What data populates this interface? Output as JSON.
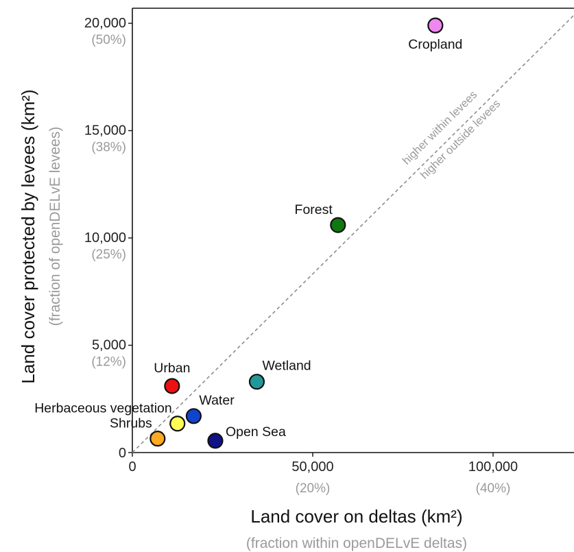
{
  "chart_data": {
    "type": "scatter",
    "title": "",
    "xlabel": "Land cover on deltas (km²)",
    "xlabel_sub": "(fraction within openDELvE deltas)",
    "ylabel": "Land cover protected by levees (km²)",
    "ylabel_sub": "(fraction of openDELvE levees)",
    "xlim": [
      0,
      125000
    ],
    "ylim": [
      0,
      21000
    ],
    "x_ticks": [
      {
        "value": 0,
        "label": "0",
        "sub": ""
      },
      {
        "value": 50000,
        "label": "50,000",
        "sub": "(20%)"
      },
      {
        "value": 100000,
        "label": "100,000",
        "sub": "(40%)"
      }
    ],
    "y_ticks": [
      {
        "value": 0,
        "label": "0",
        "sub": ""
      },
      {
        "value": 5000,
        "label": "5,000",
        "sub": "(12%)"
      },
      {
        "value": 10000,
        "label": "10,000",
        "sub": "(25%)"
      },
      {
        "value": 15000,
        "label": "15,000",
        "sub": "(38%)"
      },
      {
        "value": 20000,
        "label": "20,000",
        "sub": "(50%)"
      }
    ],
    "reference_line": {
      "style": "dashed",
      "color": "#8c8c8c",
      "label_above": "higher within levees",
      "label_below": "higher outside levees"
    },
    "points": [
      {
        "name": "Cropland",
        "x": 84000,
        "y": 19900,
        "color": "#ee88ee",
        "label_pos": "below"
      },
      {
        "name": "Forest",
        "x": 57000,
        "y": 10600,
        "color": "#117711",
        "label_pos": "upper-left"
      },
      {
        "name": "Wetland",
        "x": 34500,
        "y": 3300,
        "color": "#229999",
        "label_pos": "upper-right"
      },
      {
        "name": "Urban",
        "x": 11000,
        "y": 3100,
        "color": "#ee1111",
        "label_pos": "above"
      },
      {
        "name": "Water",
        "x": 17000,
        "y": 1700,
        "color": "#1144cc",
        "label_pos": "upper-right"
      },
      {
        "name": "Herbaceous vegetation",
        "x": 12500,
        "y": 1350,
        "color": "#ffff55",
        "label_pos": "upper-left"
      },
      {
        "name": "Open Sea",
        "x": 23000,
        "y": 550,
        "color": "#111188",
        "label_pos": "right"
      },
      {
        "name": "Shrubs",
        "x": 7000,
        "y": 650,
        "color": "#ffaa22",
        "label_pos": "upper-left"
      }
    ],
    "grid": false,
    "legend": "none"
  }
}
